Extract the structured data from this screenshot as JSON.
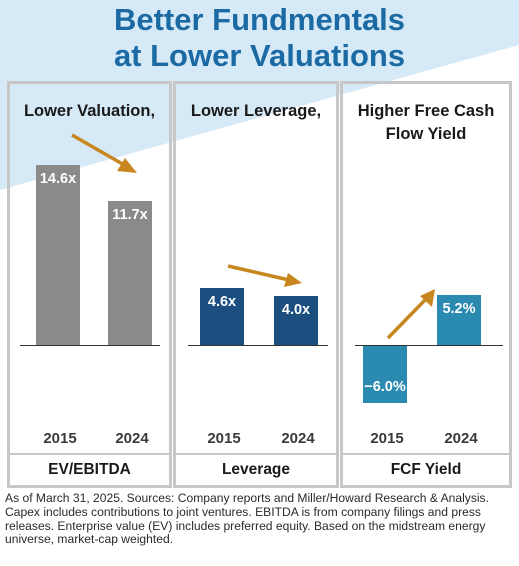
{
  "title": {
    "line1": "Better Fundmentals",
    "line2": "at Lower Valuations"
  },
  "colors": {
    "title": "#1b6aa3",
    "ev_bar": "#8a8a8a",
    "leverage_bar": "#1c4e80",
    "fcf_bar": "#2a8ab0",
    "arrow": "#c8861f",
    "background_wedge": "#d6e9f7"
  },
  "chart_data": [
    {
      "type": "bar",
      "title": "Lower Valuation,",
      "metric": "EV/EBITDA",
      "categories": [
        "2015",
        "2024"
      ],
      "values": [
        14.6,
        11.7
      ],
      "value_labels": [
        "14.6x",
        "11.7x"
      ],
      "trend": "down"
    },
    {
      "type": "bar",
      "title": "Lower Leverage,",
      "metric": "Leverage",
      "categories": [
        "2015",
        "2024"
      ],
      "values": [
        4.6,
        4.0
      ],
      "value_labels": [
        "4.6x",
        "4.0x"
      ],
      "trend": "down"
    },
    {
      "type": "bar",
      "title_lines": [
        "Higher Free Cash",
        "Flow Yield"
      ],
      "metric": "FCF Yield",
      "categories": [
        "2015",
        "2024"
      ],
      "values": [
        -6.0,
        5.2
      ],
      "value_labels": [
        "−6.0%",
        "5.2%"
      ],
      "trend": "up"
    }
  ],
  "footnote": "As of March 31, 2025. Sources: Company reports and Miller/Howard Research & Analysis. Capex includes contributions to joint ventures. EBITDA is from company filings and press releases. Enterprise value (EV) includes preferred equity. Based on the midstream energy universe, market-cap weighted."
}
